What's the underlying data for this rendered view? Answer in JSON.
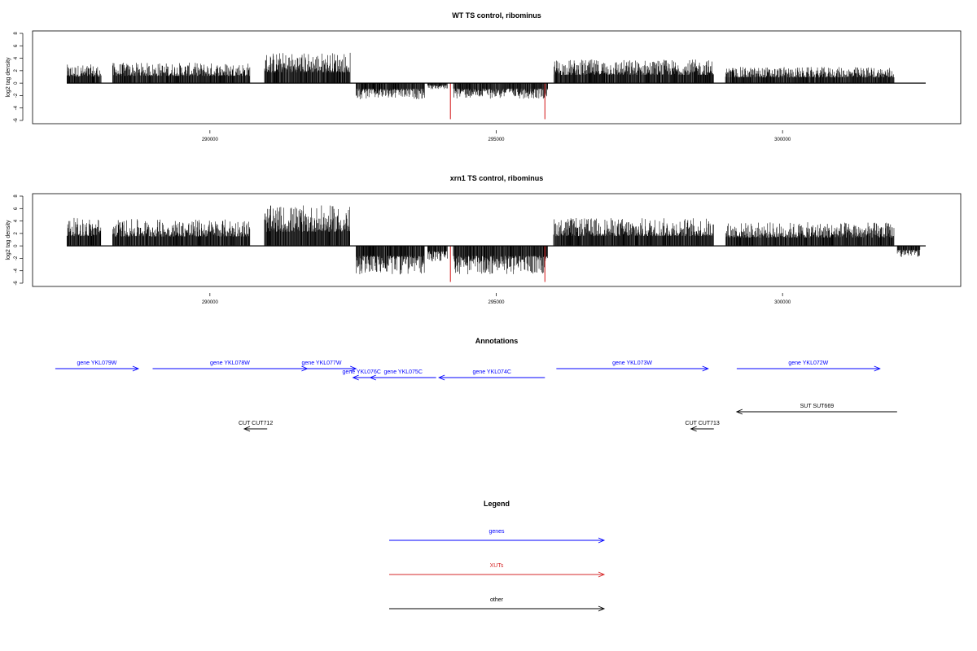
{
  "colors": {
    "bar": "#000000",
    "xut": "#d62728",
    "gene": "#0000ff",
    "other": "#000000",
    "axis": "#000000"
  },
  "chart_data": [
    {
      "type": "bar",
      "title": "WT TS control, ribominus",
      "ylabel": "log2 tag density",
      "xlim": [
        287500,
        302500
      ],
      "ylim": [
        -6,
        8
      ],
      "x_ticks": [
        290000,
        295000,
        300000
      ],
      "y_ticks": [
        -6,
        -4,
        -2,
        0,
        2,
        4,
        6,
        8
      ],
      "segments": [
        {
          "start": 287500,
          "end": 288100,
          "sign": 1,
          "amp": 3.0
        },
        {
          "start": 288300,
          "end": 290700,
          "sign": 1,
          "amp": 3.3
        },
        {
          "start": 290950,
          "end": 292450,
          "sign": 1,
          "amp": 5.0
        },
        {
          "start": 292550,
          "end": 293750,
          "sign": -1,
          "amp": 2.6
        },
        {
          "start": 293800,
          "end": 294150,
          "sign": -1,
          "amp": 1.0
        },
        {
          "start": 294250,
          "end": 295900,
          "sign": -1,
          "amp": 2.5
        },
        {
          "start": 296000,
          "end": 298800,
          "sign": 1,
          "amp": 3.8
        },
        {
          "start": 299000,
          "end": 301950,
          "sign": 1,
          "amp": 2.6
        }
      ],
      "xut_peaks": [
        {
          "x": 294200,
          "y": -5.8
        },
        {
          "x": 295850,
          "y": -5.8
        }
      ]
    },
    {
      "type": "bar",
      "title": "xrn1 TS control, ribominus",
      "ylabel": "log2 tag density",
      "xlim": [
        287500,
        302500
      ],
      "ylim": [
        -6,
        8
      ],
      "x_ticks": [
        290000,
        295000,
        300000
      ],
      "y_ticks": [
        -6,
        -4,
        -2,
        0,
        2,
        4,
        6,
        8
      ],
      "segments": [
        {
          "start": 287500,
          "end": 288100,
          "sign": 1,
          "amp": 4.5
        },
        {
          "start": 288300,
          "end": 290700,
          "sign": 1,
          "amp": 4.3
        },
        {
          "start": 290950,
          "end": 292450,
          "sign": 1,
          "amp": 6.5
        },
        {
          "start": 292550,
          "end": 293750,
          "sign": -1,
          "amp": 4.6
        },
        {
          "start": 293800,
          "end": 294150,
          "sign": -1,
          "amp": 2.5
        },
        {
          "start": 294250,
          "end": 295900,
          "sign": -1,
          "amp": 4.6
        },
        {
          "start": 296000,
          "end": 298800,
          "sign": 1,
          "amp": 4.5
        },
        {
          "start": 299000,
          "end": 301950,
          "sign": 1,
          "amp": 3.8
        },
        {
          "start": 302000,
          "end": 302400,
          "sign": -1,
          "amp": 1.8
        }
      ],
      "xut_peaks": [
        {
          "x": 294200,
          "y": -5.8
        },
        {
          "x": 295850,
          "y": -5.8
        }
      ]
    }
  ],
  "annotations": {
    "title": "Annotations",
    "features": [
      {
        "name": "gene YKL079W",
        "type": "gene",
        "start": 287300,
        "end": 288750,
        "strand": "+",
        "row": 0
      },
      {
        "name": "gene YKL078W",
        "type": "gene",
        "start": 289000,
        "end": 291700,
        "strand": "+",
        "row": 0
      },
      {
        "name": "gene YKL077W",
        "type": "gene",
        "start": 291350,
        "end": 292550,
        "strand": "+",
        "row": 0
      },
      {
        "name": "gene YKL076C",
        "type": "gene",
        "start": 292800,
        "end": 292500,
        "strand": "-",
        "row": 1
      },
      {
        "name": "gene YKL075C",
        "type": "gene",
        "start": 293950,
        "end": 292800,
        "strand": "-",
        "row": 1
      },
      {
        "name": "gene YKL074C",
        "type": "gene",
        "start": 295850,
        "end": 294000,
        "strand": "-",
        "row": 1
      },
      {
        "name": "gene YKL073W",
        "type": "gene",
        "start": 296050,
        "end": 298700,
        "strand": "+",
        "row": 0
      },
      {
        "name": "gene YKL072W",
        "type": "gene",
        "start": 299200,
        "end": 301700,
        "strand": "+",
        "row": 0
      },
      {
        "name": "SUT SUT669",
        "type": "other",
        "start": 302000,
        "end": 299200,
        "strand": "-",
        "row": 3
      },
      {
        "name": "CUT CUT712",
        "type": "other",
        "start": 291000,
        "end": 290600,
        "strand": "-",
        "row": 4
      },
      {
        "name": "CUT CUT713",
        "type": "other",
        "start": 298800,
        "end": 298400,
        "strand": "-",
        "row": 4
      }
    ]
  },
  "legend": {
    "title": "Legend",
    "items": [
      {
        "label": "genes",
        "color": "#0000ff"
      },
      {
        "label": "XUTs",
        "color": "#d62728"
      },
      {
        "label": "other",
        "color": "#000000"
      }
    ]
  }
}
